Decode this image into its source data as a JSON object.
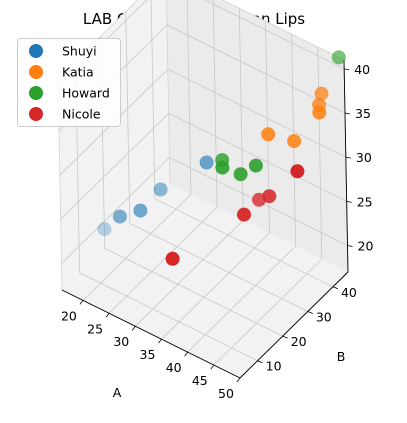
{
  "chart_data": {
    "type": "scatter",
    "projection": "3d",
    "title": "LAB Color Space: Human Lips",
    "xlabel": "A",
    "ylabel": "B",
    "zlabel": "",
    "xlim": [
      16,
      50
    ],
    "ylim": [
      3,
      46
    ],
    "zlim": [
      17,
      41
    ],
    "x_ticks": [
      20,
      25,
      30,
      35,
      40,
      45,
      50
    ],
    "y_ticks": [
      10,
      20,
      30,
      40
    ],
    "z_ticks": [
      20,
      25,
      30,
      35,
      40
    ],
    "grid": true,
    "legend_position": "upper-left",
    "series": [
      {
        "name": "Shuyi",
        "color": "#1f77b4",
        "points": [
          [
            17,
            18,
            20
          ],
          [
            22,
            14,
            24
          ],
          [
            25,
            16,
            25
          ],
          [
            26,
            22,
            26
          ],
          [
            33,
            26,
            30
          ]
        ]
      },
      {
        "name": "Katia",
        "color": "#ff7f0e",
        "points": [
          [
            43,
            30,
            35
          ],
          [
            46,
            34,
            34
          ],
          [
            48,
            40,
            37
          ],
          [
            48,
            41,
            38
          ],
          [
            49,
            38,
            37
          ]
        ]
      },
      {
        "name": "Howard",
        "color": "#2ca02c",
        "points": [
          [
            37,
            24,
            32
          ],
          [
            38,
            22,
            32
          ],
          [
            40,
            25,
            31
          ],
          [
            42,
            27,
            32
          ],
          [
            49,
            46,
            41
          ]
        ]
      },
      {
        "name": "Nicole",
        "color": "#d62728",
        "points": [
          [
            33,
            12,
            23
          ],
          [
            41,
            24,
            27
          ],
          [
            41,
            30,
            27
          ],
          [
            43,
            30,
            28
          ],
          [
            48,
            31,
            32
          ]
        ]
      }
    ]
  }
}
